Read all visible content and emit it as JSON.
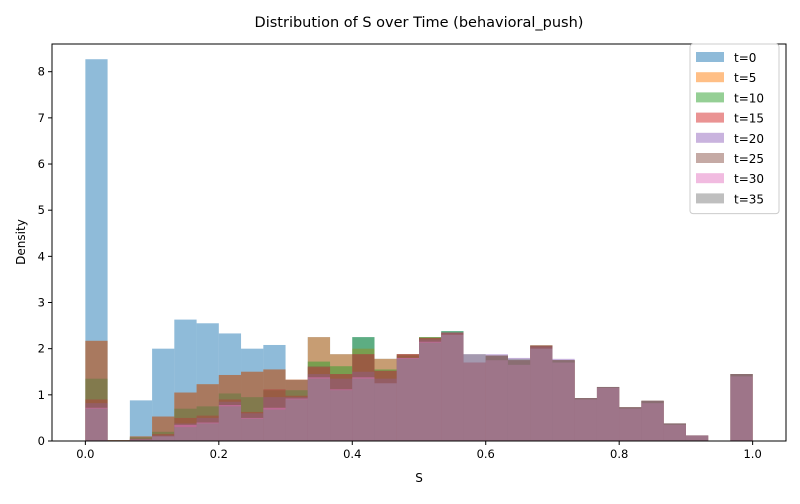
{
  "chart_data": {
    "type": "bar",
    "histtype": "overlapping-histogram",
    "title": "Distribution of S over Time (behavioral_push)",
    "xlabel": "S",
    "ylabel": "Density",
    "xlim": [
      -0.05,
      1.05
    ],
    "ylim": [
      0,
      8.6
    ],
    "xticks": [
      0.0,
      0.2,
      0.4,
      0.6,
      0.8,
      1.0
    ],
    "xtick_labels": [
      "0.0",
      "0.2",
      "0.4",
      "0.6",
      "0.8",
      "1.0"
    ],
    "yticks": [
      0,
      1,
      2,
      3,
      4,
      5,
      6,
      7,
      8
    ],
    "ytick_labels": [
      "0",
      "1",
      "2",
      "3",
      "4",
      "5",
      "6",
      "7",
      "8"
    ],
    "grid": false,
    "legend": "top-right",
    "alpha": 0.5,
    "bin_edges": [
      0.0,
      0.0333,
      0.0667,
      0.1,
      0.1333,
      0.1667,
      0.2,
      0.2333,
      0.2667,
      0.3,
      0.3333,
      0.3667,
      0.4,
      0.4333,
      0.4667,
      0.5,
      0.5333,
      0.5667,
      0.6,
      0.6333,
      0.6667,
      0.7,
      0.7333,
      0.7667,
      0.8,
      0.8333,
      0.8667,
      0.9,
      0.9333,
      0.9667,
      1.0
    ],
    "series": [
      {
        "name": "t=0",
        "color": "#1f77b4",
        "values": [
          8.27,
          0.02,
          0.88,
          2.0,
          2.63,
          2.55,
          2.33,
          2.0,
          2.08,
          1.32,
          2.25,
          1.88,
          2.25,
          1.78,
          1.88,
          2.25,
          2.38,
          1.7,
          1.85,
          1.75,
          2.07,
          1.75,
          0.93,
          1.17,
          0.73,
          0.87,
          0.38,
          0.12,
          0.0,
          1.45
        ]
      },
      {
        "name": "t=5",
        "color": "#ff7f0e",
        "values": [
          2.17,
          0.02,
          0.1,
          0.53,
          1.05,
          1.23,
          1.43,
          1.5,
          1.55,
          1.33,
          2.25,
          1.88,
          2.0,
          1.78,
          1.88,
          2.25,
          2.35,
          1.7,
          1.85,
          1.75,
          2.07,
          1.75,
          0.93,
          1.17,
          0.73,
          0.87,
          0.38,
          0.12,
          0.0,
          1.45
        ]
      },
      {
        "name": "t=10",
        "color": "#2ca02c",
        "values": [
          1.35,
          0.0,
          0.08,
          0.2,
          0.7,
          0.75,
          1.03,
          0.95,
          1.1,
          1.1,
          1.72,
          1.62,
          2.25,
          1.55,
          1.85,
          2.25,
          2.38,
          1.7,
          1.85,
          1.75,
          2.07,
          1.75,
          0.93,
          1.17,
          0.73,
          0.87,
          0.38,
          0.12,
          0.0,
          1.45
        ]
      },
      {
        "name": "t=15",
        "color": "#d62728",
        "values": [
          0.9,
          0.0,
          0.05,
          0.15,
          0.5,
          0.55,
          0.9,
          0.63,
          1.12,
          0.98,
          1.6,
          1.45,
          1.88,
          1.52,
          1.88,
          2.23,
          2.35,
          1.7,
          1.85,
          1.75,
          2.07,
          1.75,
          0.93,
          1.17,
          0.73,
          0.87,
          0.38,
          0.12,
          0.0,
          1.45
        ]
      },
      {
        "name": "t=20",
        "color": "#9467bd",
        "values": [
          0.82,
          0.0,
          0.05,
          0.12,
          0.38,
          0.5,
          0.85,
          0.6,
          0.95,
          0.95,
          1.45,
          1.35,
          1.5,
          1.35,
          1.8,
          2.2,
          2.35,
          1.88,
          1.88,
          1.8,
          2.05,
          1.78,
          0.93,
          1.17,
          0.73,
          0.87,
          0.38,
          0.12,
          0.0,
          1.45
        ]
      },
      {
        "name": "t=25",
        "color": "#8c564b",
        "values": [
          2.17,
          0.02,
          0.1,
          0.53,
          1.05,
          1.23,
          1.43,
          1.5,
          1.55,
          1.33,
          1.62,
          1.45,
          1.88,
          1.52,
          1.88,
          2.23,
          2.35,
          1.7,
          1.85,
          1.75,
          2.07,
          1.75,
          0.93,
          1.17,
          0.73,
          0.87,
          0.38,
          0.12,
          0.0,
          1.45
        ]
      },
      {
        "name": "t=30",
        "color": "#e377c2",
        "values": [
          0.72,
          0.0,
          0.03,
          0.1,
          0.35,
          0.4,
          0.78,
          0.5,
          0.72,
          0.92,
          1.38,
          1.12,
          1.38,
          1.25,
          1.8,
          2.15,
          2.3,
          1.7,
          1.75,
          1.65,
          2.0,
          1.7,
          0.9,
          1.15,
          0.7,
          0.82,
          0.35,
          0.12,
          0.0,
          1.4
        ]
      },
      {
        "name": "t=35",
        "color": "#7f7f7f",
        "values": [
          0.7,
          0.0,
          0.03,
          0.1,
          0.3,
          0.38,
          0.75,
          0.48,
          0.68,
          0.9,
          1.35,
          1.1,
          1.35,
          1.25,
          1.78,
          2.13,
          2.3,
          1.88,
          1.85,
          1.78,
          2.0,
          1.75,
          0.93,
          1.17,
          0.73,
          0.87,
          0.38,
          0.12,
          0.0,
          1.45
        ]
      }
    ]
  }
}
